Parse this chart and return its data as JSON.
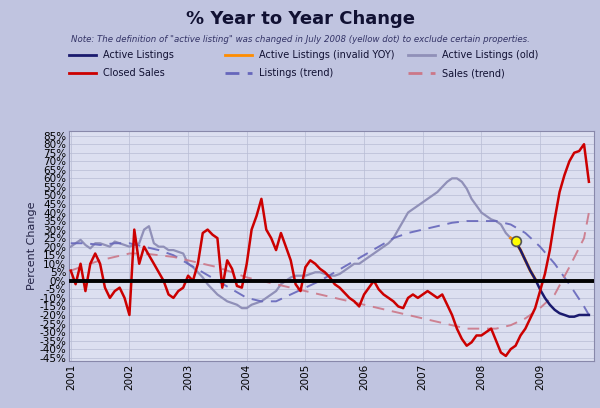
{
  "title": "% Year to Year Change",
  "note": "Note: The definition of \"active listing\" was changed in July 2008 (yellow dot) to exclude certain properties.",
  "ylabel": "Percent Change",
  "background_color": "#c0c4e0",
  "plot_bg_color": "#dcdff0",
  "grid_color": "#b8bcd4",
  "ylim": [
    -0.47,
    0.88
  ],
  "yticks": [
    -0.45,
    -0.4,
    -0.35,
    -0.3,
    -0.25,
    -0.2,
    -0.15,
    -0.1,
    -0.05,
    0.0,
    0.05,
    0.1,
    0.15,
    0.2,
    0.25,
    0.3,
    0.35,
    0.4,
    0.45,
    0.5,
    0.55,
    0.6,
    0.65,
    0.7,
    0.75,
    0.8,
    0.85
  ],
  "active_listings_color": "#1a1a6e",
  "active_listings_invalid_color": "#FF8C00",
  "active_listings_old_color": "#9090b8",
  "closed_sales_color": "#cc0000",
  "listings_trend_color": "#6666bb",
  "sales_trend_color": "#cc7788",
  "zero_line_color": "#000000",
  "yellow_dot_color": "#ffff00",
  "yellow_dot_edge": "#555555",
  "active_old_t": [
    2001.0,
    2001.083,
    2001.167,
    2001.25,
    2001.333,
    2001.417,
    2001.5,
    2001.583,
    2001.667,
    2001.75,
    2001.833,
    2001.917,
    2002.0,
    2002.083,
    2002.167,
    2002.25,
    2002.333,
    2002.417,
    2002.5,
    2002.583,
    2002.667,
    2002.75,
    2002.833,
    2002.917,
    2003.0,
    2003.083,
    2003.167,
    2003.25,
    2003.333,
    2003.417,
    2003.5,
    2003.583,
    2003.667,
    2003.75,
    2003.833,
    2003.917,
    2004.0,
    2004.083,
    2004.167,
    2004.25,
    2004.333,
    2004.417,
    2004.5,
    2004.583,
    2004.667,
    2004.75,
    2004.833,
    2004.917,
    2005.0,
    2005.083,
    2005.167,
    2005.25,
    2005.333,
    2005.417,
    2005.5,
    2005.583,
    2005.667,
    2005.75,
    2005.833,
    2005.917,
    2006.0,
    2006.083,
    2006.167,
    2006.25,
    2006.333,
    2006.417,
    2006.5,
    2006.583,
    2006.667,
    2006.75,
    2006.833,
    2006.917,
    2007.0,
    2007.083,
    2007.167,
    2007.25,
    2007.333,
    2007.417,
    2007.5,
    2007.583,
    2007.667,
    2007.75,
    2007.833,
    2007.917,
    2008.0,
    2008.083,
    2008.167,
    2008.25,
    2008.333,
    2008.417,
    2008.5
  ],
  "active_old_v": [
    0.2,
    0.22,
    0.24,
    0.21,
    0.19,
    0.22,
    0.22,
    0.21,
    0.2,
    0.23,
    0.22,
    0.21,
    0.2,
    0.21,
    0.22,
    0.3,
    0.32,
    0.22,
    0.2,
    0.2,
    0.18,
    0.18,
    0.17,
    0.16,
    0.1,
    0.08,
    0.05,
    0.02,
    -0.02,
    -0.05,
    -0.08,
    -0.1,
    -0.12,
    -0.13,
    -0.14,
    -0.16,
    -0.16,
    -0.14,
    -0.13,
    -0.12,
    -0.1,
    -0.08,
    -0.06,
    -0.02,
    0.0,
    0.02,
    0.03,
    0.03,
    0.03,
    0.04,
    0.05,
    0.05,
    0.04,
    0.03,
    0.03,
    0.04,
    0.06,
    0.08,
    0.1,
    0.1,
    0.12,
    0.14,
    0.16,
    0.18,
    0.2,
    0.22,
    0.25,
    0.3,
    0.35,
    0.4,
    0.42,
    0.44,
    0.46,
    0.48,
    0.5,
    0.52,
    0.55,
    0.58,
    0.6,
    0.6,
    0.58,
    0.54,
    0.48,
    0.44,
    0.4,
    0.38,
    0.36,
    0.35,
    0.33,
    0.28,
    0.25
  ],
  "active_invalid_t": [
    2008.5,
    2008.583,
    2008.667,
    2008.75,
    2008.833,
    2008.917
  ],
  "active_invalid_v": [
    0.25,
    0.23,
    0.18,
    0.12,
    0.06,
    0.01
  ],
  "active_new_t": [
    2008.583,
    2008.667,
    2008.75,
    2008.833,
    2008.917,
    2009.0,
    2009.083,
    2009.167,
    2009.25,
    2009.333,
    2009.417,
    2009.5,
    2009.583,
    2009.667,
    2009.75,
    2009.833
  ],
  "active_new_v": [
    0.23,
    0.18,
    0.12,
    0.06,
    0.01,
    -0.05,
    -0.1,
    -0.14,
    -0.17,
    -0.19,
    -0.2,
    -0.21,
    -0.21,
    -0.2,
    -0.2,
    -0.2
  ],
  "closed_sales_t": [
    2001.0,
    2001.083,
    2001.167,
    2001.25,
    2001.333,
    2001.417,
    2001.5,
    2001.583,
    2001.667,
    2001.75,
    2001.833,
    2001.917,
    2002.0,
    2002.083,
    2002.167,
    2002.25,
    2002.333,
    2002.417,
    2002.5,
    2002.583,
    2002.667,
    2002.75,
    2002.833,
    2002.917,
    2003.0,
    2003.083,
    2003.167,
    2003.25,
    2003.333,
    2003.417,
    2003.5,
    2003.583,
    2003.667,
    2003.75,
    2003.833,
    2003.917,
    2004.0,
    2004.083,
    2004.167,
    2004.25,
    2004.333,
    2004.417,
    2004.5,
    2004.583,
    2004.667,
    2004.75,
    2004.833,
    2004.917,
    2005.0,
    2005.083,
    2005.167,
    2005.25,
    2005.333,
    2005.417,
    2005.5,
    2005.583,
    2005.667,
    2005.75,
    2005.833,
    2005.917,
    2006.0,
    2006.083,
    2006.167,
    2006.25,
    2006.333,
    2006.417,
    2006.5,
    2006.583,
    2006.667,
    2006.75,
    2006.833,
    2006.917,
    2007.0,
    2007.083,
    2007.167,
    2007.25,
    2007.333,
    2007.417,
    2007.5,
    2007.583,
    2007.667,
    2007.75,
    2007.833,
    2007.917,
    2008.0,
    2008.083,
    2008.167,
    2008.25,
    2008.333,
    2008.417,
    2008.5,
    2008.583,
    2008.667,
    2008.75,
    2008.833,
    2008.917,
    2009.0,
    2009.083,
    2009.167,
    2009.25,
    2009.333,
    2009.417,
    2009.5,
    2009.583,
    2009.667,
    2009.75,
    2009.833
  ],
  "closed_sales_v": [
    0.06,
    -0.02,
    0.1,
    -0.06,
    0.1,
    0.16,
    0.1,
    -0.04,
    -0.1,
    -0.06,
    -0.04,
    -0.1,
    -0.2,
    0.3,
    0.1,
    0.2,
    0.15,
    0.1,
    0.05,
    0.0,
    -0.08,
    -0.1,
    -0.06,
    -0.04,
    0.03,
    0.0,
    0.1,
    0.28,
    0.3,
    0.27,
    0.25,
    -0.04,
    0.12,
    0.07,
    -0.03,
    -0.04,
    0.1,
    0.3,
    0.38,
    0.48,
    0.3,
    0.25,
    0.18,
    0.28,
    0.2,
    0.12,
    -0.02,
    -0.06,
    0.08,
    0.12,
    0.1,
    0.07,
    0.05,
    0.02,
    -0.02,
    -0.04,
    -0.07,
    -0.1,
    -0.12,
    -0.15,
    -0.08,
    -0.04,
    0.0,
    -0.05,
    -0.08,
    -0.1,
    -0.12,
    -0.15,
    -0.16,
    -0.1,
    -0.08,
    -0.1,
    -0.08,
    -0.06,
    -0.08,
    -0.1,
    -0.08,
    -0.14,
    -0.2,
    -0.28,
    -0.34,
    -0.38,
    -0.36,
    -0.32,
    -0.32,
    -0.3,
    -0.28,
    -0.35,
    -0.42,
    -0.44,
    -0.4,
    -0.38,
    -0.32,
    -0.28,
    -0.22,
    -0.16,
    -0.06,
    0.04,
    0.18,
    0.36,
    0.52,
    0.62,
    0.7,
    0.75,
    0.76,
    0.8,
    0.58
  ],
  "listings_trend_t": [
    2001.0,
    2001.25,
    2001.5,
    2001.75,
    2002.0,
    2002.25,
    2002.5,
    2002.75,
    2003.0,
    2003.25,
    2003.5,
    2003.75,
    2004.0,
    2004.25,
    2004.5,
    2004.75,
    2005.0,
    2005.25,
    2005.5,
    2005.75,
    2006.0,
    2006.25,
    2006.5,
    2006.75,
    2007.0,
    2007.25,
    2007.5,
    2007.75,
    2008.0,
    2008.25,
    2008.5,
    2008.75,
    2009.0,
    2009.25,
    2009.5,
    2009.75,
    2009.833
  ],
  "listings_trend_v": [
    0.22,
    0.22,
    0.21,
    0.22,
    0.22,
    0.2,
    0.18,
    0.15,
    0.1,
    0.05,
    0.0,
    -0.05,
    -0.1,
    -0.12,
    -0.12,
    -0.08,
    -0.04,
    0.0,
    0.05,
    0.1,
    0.15,
    0.2,
    0.25,
    0.28,
    0.3,
    0.32,
    0.34,
    0.35,
    0.35,
    0.35,
    0.33,
    0.28,
    0.2,
    0.1,
    -0.02,
    -0.15,
    -0.2
  ],
  "sales_trend_t": [
    2001.0,
    2001.25,
    2001.5,
    2001.75,
    2002.0,
    2002.25,
    2002.5,
    2002.75,
    2003.0,
    2003.25,
    2003.5,
    2003.75,
    2004.0,
    2004.25,
    2004.5,
    2004.75,
    2005.0,
    2005.25,
    2005.5,
    2005.75,
    2006.0,
    2006.25,
    2006.5,
    2006.75,
    2007.0,
    2007.25,
    2007.5,
    2007.75,
    2008.0,
    2008.25,
    2008.5,
    2008.75,
    2009.0,
    2009.25,
    2009.5,
    2009.75,
    2009.833
  ],
  "sales_trend_v": [
    0.06,
    0.09,
    0.12,
    0.14,
    0.16,
    0.16,
    0.15,
    0.14,
    0.12,
    0.1,
    0.08,
    0.05,
    0.02,
    0.0,
    -0.02,
    -0.04,
    -0.06,
    -0.08,
    -0.1,
    -0.12,
    -0.14,
    -0.16,
    -0.18,
    -0.2,
    -0.22,
    -0.24,
    -0.26,
    -0.28,
    -0.28,
    -0.28,
    -0.26,
    -0.22,
    -0.16,
    -0.08,
    0.08,
    0.25,
    0.4
  ],
  "yellow_dot_t": 2008.583,
  "yellow_dot_v": 0.235,
  "xticks": [
    2001,
    2002,
    2003,
    2004,
    2005,
    2006,
    2007,
    2008,
    2009
  ],
  "xlim": [
    2000.97,
    2009.92
  ]
}
